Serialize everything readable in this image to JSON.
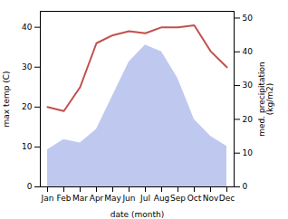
{
  "chart_data": {
    "type": "line",
    "categories": [
      "Jan",
      "Feb",
      "Mar",
      "Apr",
      "May",
      "Jun",
      "Jul",
      "Aug",
      "Sep",
      "Oct",
      "Nov",
      "Dec"
    ],
    "series": [
      {
        "type": "area",
        "color": "#bfc9f0",
        "axis": "y2",
        "values": [
          11,
          14,
          13,
          17,
          27,
          37,
          42,
          40,
          32,
          20,
          15,
          12
        ]
      },
      {
        "type": "line",
        "color": "#c0504d",
        "values": [
          20,
          19,
          25,
          36,
          38,
          39,
          38.5,
          40,
          40,
          40.5,
          34,
          30
        ]
      }
    ],
    "xlabel": "date (month)",
    "ylabel": "max temp (C)",
    "y2label": "med. precipitation\n(kg/m2)",
    "ylim": [
      0,
      44
    ],
    "yticks": [
      0,
      10,
      20,
      30,
      40
    ],
    "y2lim": [
      0,
      52
    ],
    "y2ticks": [
      0,
      10,
      20,
      30,
      40,
      50
    ],
    "grid": false
  }
}
